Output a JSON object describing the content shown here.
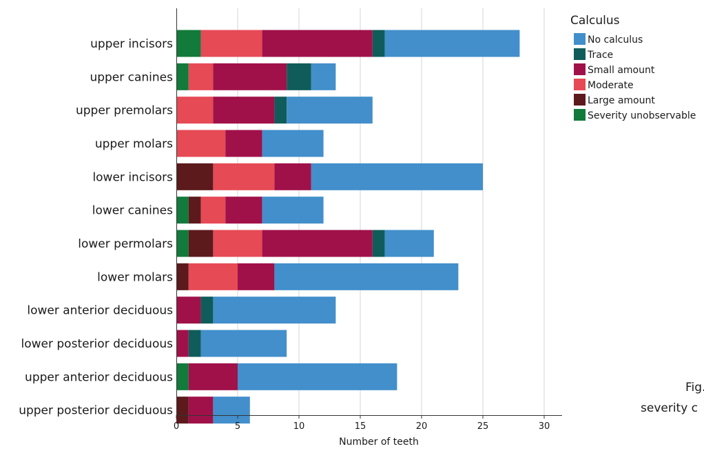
{
  "chart_data": {
    "type": "bar",
    "orientation": "horizontal",
    "stacked": true,
    "categories": [
      "upper incisors",
      "upper canines",
      "upper premolars",
      "upper molars",
      "lower incisors",
      "lower canines",
      "lower permolars",
      "lower molars",
      "lower anterior deciduous",
      "lower posterior deciduous",
      "upper anterior deciduous",
      "upper posterior deciduous"
    ],
    "series": [
      {
        "name": "Severity unobservable",
        "color": "#127a3a",
        "values": [
          2,
          1,
          0,
          0,
          0,
          1,
          1,
          0,
          0,
          0,
          1,
          0
        ]
      },
      {
        "name": "Large amount",
        "color": "#5c1a1d",
        "values": [
          0,
          0,
          0,
          0,
          3,
          1,
          2,
          1,
          0,
          0,
          0,
          1
        ]
      },
      {
        "name": "Moderate",
        "color": "#e64a55",
        "values": [
          5,
          2,
          3,
          4,
          5,
          2,
          4,
          4,
          0,
          0,
          0,
          0
        ]
      },
      {
        "name": "Small amount",
        "color": "#a0114a",
        "values": [
          9,
          6,
          5,
          3,
          3,
          3,
          9,
          3,
          2,
          1,
          4,
          2
        ]
      },
      {
        "name": "Trace",
        "color": "#0f5c5a",
        "values": [
          1,
          2,
          1,
          0,
          0,
          0,
          1,
          0,
          1,
          1,
          0,
          0
        ]
      },
      {
        "name": "No calculus",
        "color": "#428fcb",
        "values": [
          11,
          2,
          7,
          5,
          14,
          5,
          4,
          15,
          10,
          7,
          13,
          3
        ]
      }
    ],
    "xlabel": "Number of teeth",
    "ylabel": "",
    "xlim": [
      0,
      33
    ],
    "xticks": [
      "0",
      "5",
      "10",
      "15",
      "20",
      "25",
      "30"
    ],
    "grid": "vertical",
    "legend": {
      "title": "Calculus",
      "position": "top-right",
      "order": [
        "No calculus",
        "Trace",
        "Small amount",
        "Moderate",
        "Large amount",
        "Severity unobservable"
      ]
    }
  },
  "caption_fragment": [
    "Fig.",
    "severity c"
  ]
}
